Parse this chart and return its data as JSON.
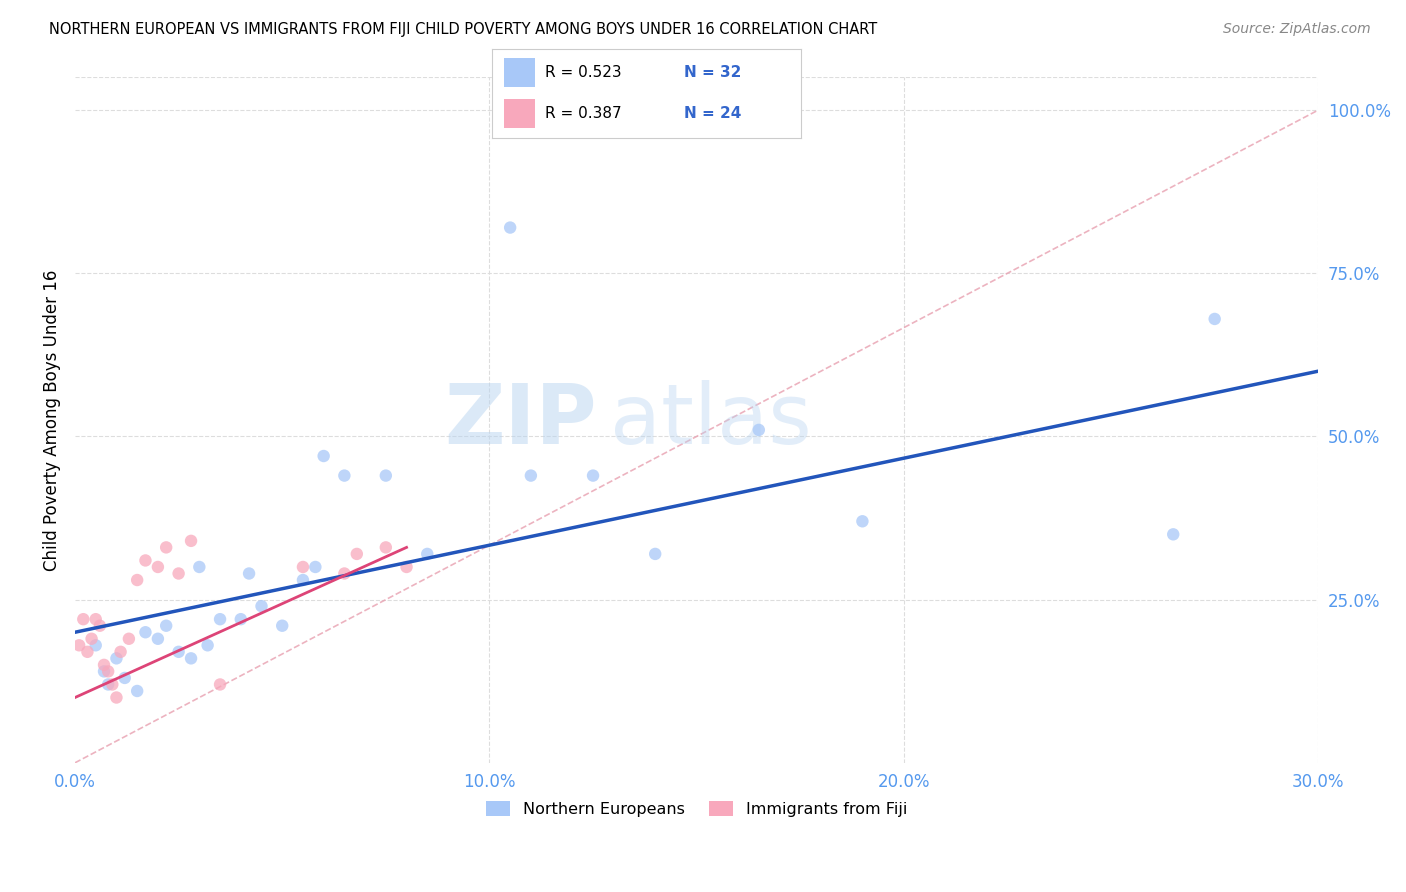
{
  "title": "NORTHERN EUROPEAN VS IMMIGRANTS FROM FIJI CHILD POVERTY AMONG BOYS UNDER 16 CORRELATION CHART",
  "source": "Source: ZipAtlas.com",
  "xlabel_ticks": [
    "0.0%",
    "10.0%",
    "20.0%",
    "30.0%"
  ],
  "xlabel_tick_vals": [
    0.0,
    10.0,
    20.0,
    30.0
  ],
  "ylabel_ticks": [
    "25.0%",
    "50.0%",
    "75.0%",
    "100.0%"
  ],
  "ylabel_tick_vals": [
    25.0,
    50.0,
    75.0,
    100.0
  ],
  "xlim": [
    0.0,
    30.0
  ],
  "ylim": [
    0.0,
    105.0
  ],
  "blue_color": "#a8c8f8",
  "blue_line_color": "#2255bb",
  "pink_color": "#f8a8bc",
  "pink_line_color": "#dd4477",
  "dashed_line_color": "#e8a0b0",
  "watermark_zip": "ZIP",
  "watermark_atlas": "atlas",
  "legend_R1": "R = 0.523",
  "legend_N1": "N = 32",
  "legend_R2": "R = 0.387",
  "legend_N2": "N = 24",
  "blue_x": [
    0.5,
    0.7,
    0.8,
    1.0,
    1.2,
    1.5,
    1.7,
    2.0,
    2.2,
    2.5,
    2.8,
    3.0,
    3.2,
    3.5,
    4.0,
    4.2,
    4.5,
    5.0,
    5.5,
    5.8,
    6.0,
    6.5,
    7.5,
    8.5,
    10.5,
    11.0,
    12.5,
    14.0,
    16.5,
    19.0,
    26.5,
    27.5
  ],
  "blue_y": [
    18.0,
    14.0,
    12.0,
    16.0,
    13.0,
    11.0,
    20.0,
    19.0,
    21.0,
    17.0,
    16.0,
    30.0,
    18.0,
    22.0,
    22.0,
    29.0,
    24.0,
    21.0,
    28.0,
    30.0,
    47.0,
    44.0,
    44.0,
    32.0,
    82.0,
    44.0,
    44.0,
    32.0,
    51.0,
    37.0,
    35.0,
    68.0
  ],
  "pink_x": [
    0.1,
    0.2,
    0.3,
    0.4,
    0.5,
    0.6,
    0.7,
    0.8,
    0.9,
    1.0,
    1.1,
    1.3,
    1.5,
    1.7,
    2.0,
    2.2,
    2.5,
    2.8,
    3.5,
    5.5,
    6.5,
    6.8,
    7.5,
    8.0
  ],
  "pink_y": [
    18.0,
    22.0,
    17.0,
    19.0,
    22.0,
    21.0,
    15.0,
    14.0,
    12.0,
    10.0,
    17.0,
    19.0,
    28.0,
    31.0,
    30.0,
    33.0,
    29.0,
    34.0,
    12.0,
    30.0,
    29.0,
    32.0,
    33.0,
    30.0
  ],
  "ylabel": "Child Poverty Among Boys Under 16",
  "marker_size": 80,
  "grid_color": "#dddddd",
  "blue_line_y0": 20.0,
  "blue_line_y30": 60.0,
  "pink_line_x0": 0.0,
  "pink_line_x1": 8.0,
  "pink_line_y0": 10.0,
  "pink_line_y1": 33.0
}
